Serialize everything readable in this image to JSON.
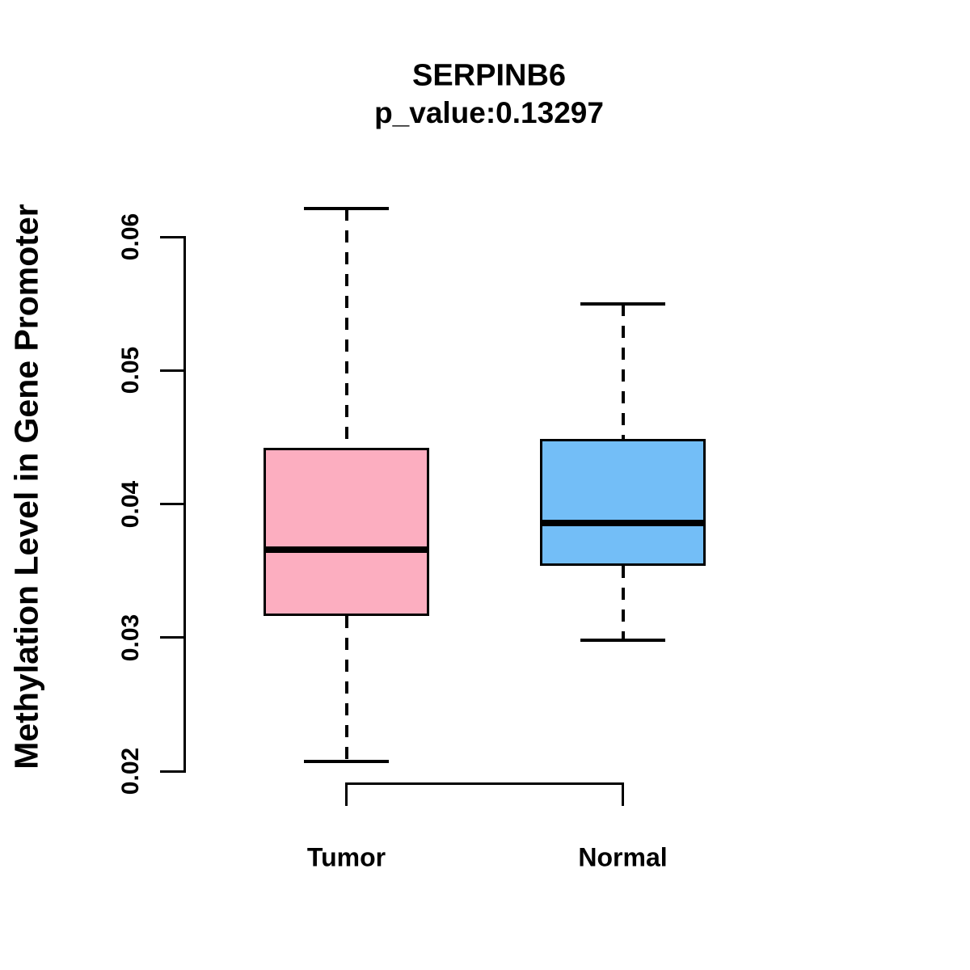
{
  "title": "SERPINB6",
  "subtitle": "p_value:0.13297",
  "chart_data": {
    "type": "boxplot",
    "title": "SERPINB6",
    "subtitle": "p_value:0.13297",
    "xlabel": "",
    "ylabel": "Methylation Level in Gene Promoter",
    "categories": [
      "Tumor",
      "Normal"
    ],
    "y_ticks": [
      0.02,
      0.03,
      0.04,
      0.05,
      0.06
    ],
    "y_tick_labels": [
      "0.02",
      "0.03",
      "0.04",
      "0.05",
      "0.06"
    ],
    "ylim": [
      0.02,
      0.06
    ],
    "grid": false,
    "legend": "none",
    "series": [
      {
        "name": "Tumor",
        "color": "#FCAEC0",
        "whisker_low": 0.0207,
        "q1": 0.0316,
        "median": 0.0366,
        "q3": 0.0442,
        "whisker_high": 0.0621
      },
      {
        "name": "Normal",
        "color": "#73BEF7",
        "whisker_low": 0.0298,
        "q1": 0.0354,
        "median": 0.0386,
        "q3": 0.0449,
        "whisker_high": 0.055
      }
    ],
    "colors": {
      "box_border": "#000000",
      "median_line": "#000000",
      "whisker": "#000000",
      "background": "#FFFFFF"
    }
  }
}
